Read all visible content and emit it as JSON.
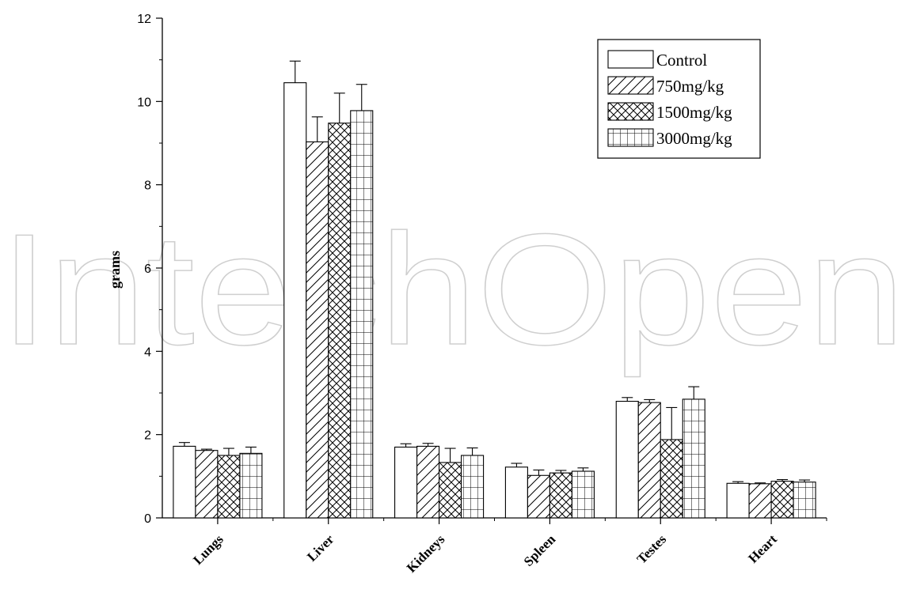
{
  "chart_data": {
    "type": "bar",
    "title": "",
    "xlabel": "",
    "ylabel": "grams",
    "ylim": [
      0,
      12
    ],
    "yticks": [
      0,
      2,
      4,
      6,
      8,
      10,
      12
    ],
    "categories": [
      "Lungs",
      "Liver",
      "Kidneys",
      "Spleen",
      "Testes",
      "Heart"
    ],
    "series": [
      {
        "name": "Control",
        "pattern": "none",
        "values": [
          1.72,
          10.45,
          1.7,
          1.22,
          2.8,
          0.83
        ],
        "errors": [
          0.09,
          0.52,
          0.08,
          0.09,
          0.09,
          0.04
        ]
      },
      {
        "name": "750mg/kg",
        "pattern": "hatch",
        "values": [
          1.62,
          9.03,
          1.72,
          1.02,
          2.77,
          0.82
        ],
        "errors": [
          0.03,
          0.6,
          0.07,
          0.13,
          0.07,
          0.02
        ]
      },
      {
        "name": "1500mg/kg",
        "pattern": "crosshatch",
        "values": [
          1.5,
          9.48,
          1.33,
          1.08,
          1.88,
          0.88
        ],
        "errors": [
          0.17,
          0.72,
          0.34,
          0.06,
          0.77,
          0.04
        ]
      },
      {
        "name": "3000mg/kg",
        "pattern": "grid",
        "values": [
          1.55,
          9.78,
          1.5,
          1.12,
          2.85,
          0.86
        ],
        "errors": [
          0.15,
          0.63,
          0.18,
          0.08,
          0.3,
          0.05
        ]
      }
    ],
    "legend_position": "top-right",
    "grid": false
  },
  "watermark": "IntechOpen"
}
